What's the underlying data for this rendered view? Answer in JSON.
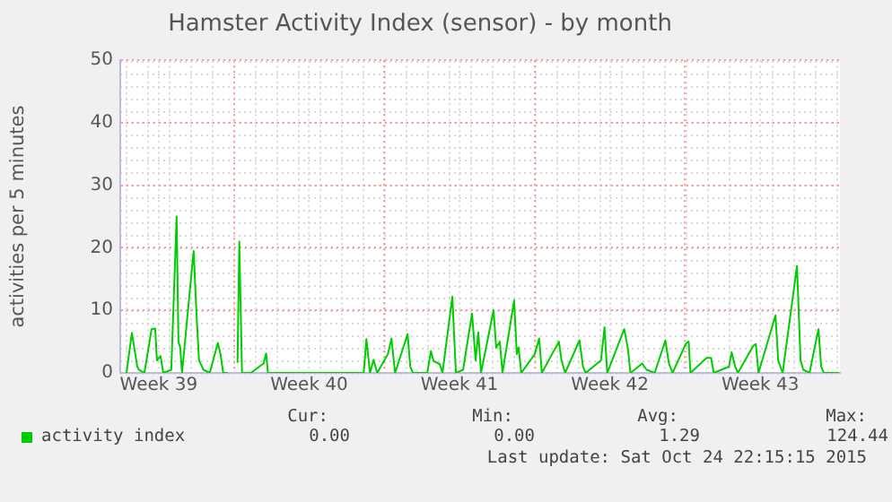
{
  "chart_data": {
    "type": "line",
    "title": "Hamster Activity Index (sensor) - by month",
    "ylabel": "activities per 5 minutes",
    "xlim": [
      "2015-09-22T17:00",
      "2015-10-26T05:00"
    ],
    "xticks": [
      {
        "value": "2015-09-24T12:00",
        "label": "Week 39"
      },
      {
        "value": "2015-09-28",
        "label": null
      },
      {
        "value": "2015-10-01T12:00",
        "label": "Week 40"
      },
      {
        "value": "2015-10-05",
        "label": null
      },
      {
        "value": "2015-10-08T12:00",
        "label": "Week 41"
      },
      {
        "value": "2015-10-12",
        "label": null
      },
      {
        "value": "2015-10-15T12:00",
        "label": "Week 42"
      },
      {
        "value": "2015-10-19",
        "label": null
      },
      {
        "value": "2015-10-22T12:00",
        "label": "Week 43"
      }
    ],
    "ylim": [
      0,
      50
    ],
    "yticks": [
      0,
      10,
      20,
      30,
      40,
      50
    ],
    "grid": true,
    "legend": "bottom",
    "marker": "none",
    "line_style": "solid",
    "series": [
      {
        "name": "activity index",
        "color": "#00cc00",
        "x": [
          "2015-09-23T00:00",
          "2015-09-23T06:00",
          "2015-09-23T12:00",
          "2015-09-23T14:00",
          "2015-09-23T20:00",
          "2015-09-24T04:00",
          "2015-09-24T08:00",
          "2015-09-24T10:00",
          "2015-09-24T14:00",
          "2015-09-24T17:00",
          "2015-09-25T02:00",
          "2015-09-25T08:00",
          "2015-09-25T10:00",
          "2015-09-25T12:00",
          "2015-09-25T14:00",
          "2015-09-26T03:00",
          "2015-09-26T06:00",
          "2015-09-26T09:00",
          "2015-09-26T14:00",
          "2015-09-26T21:00",
          "2015-09-27T06:00",
          "2015-09-27T09:00",
          "2015-09-27T12:00",
          "2015-09-27T17:00",
          "2015-09-27T22:00",
          "2015-09-28T04:00",
          "2015-09-28T06:00",
          "2015-09-28T09:00",
          "2015-09-28T19:00",
          "2015-09-29T09:00",
          "2015-09-29T12:00",
          "2015-09-29T14:00",
          "2015-10-04T01:00",
          "2015-10-04T04:00",
          "2015-10-04T08:00",
          "2015-10-04T12:00",
          "2015-10-04T16:00",
          "2015-10-05T04:00",
          "2015-10-05T08:00",
          "2015-10-05T12:00",
          "2015-10-06T02:00",
          "2015-10-06T05:00",
          "2015-10-06T08:00",
          "2015-10-07T00:00",
          "2015-10-07T04:00",
          "2015-10-07T07:00",
          "2015-10-07T14:00",
          "2015-10-07T17:00",
          "2015-10-08T04:00",
          "2015-10-08T08:00",
          "2015-10-08T16:00",
          "2015-10-09T02:00",
          "2015-10-09T06:00",
          "2015-10-09T09:00",
          "2015-10-09T12:00",
          "2015-10-10T02:00",
          "2015-10-10T05:00",
          "2015-10-10T09:00",
          "2015-10-10T12:00",
          "2015-10-11T01:00",
          "2015-10-11T04:00",
          "2015-10-11T06:00",
          "2015-10-11T09:00",
          "2015-10-12T00:00",
          "2015-10-12T05:00",
          "2015-10-12T08:00",
          "2015-10-13T03:00",
          "2015-10-13T06:00",
          "2015-10-13T10:00",
          "2015-10-14T02:00",
          "2015-10-14T06:00",
          "2015-10-14T09:00",
          "2015-10-15T02:00",
          "2015-10-15T06:00",
          "2015-10-15T09:00",
          "2015-10-16T04:00",
          "2015-10-16T08:00",
          "2015-10-16T11:00",
          "2015-10-17T00:00",
          "2015-10-17T05:00",
          "2015-10-17T14:00",
          "2015-10-18T02:00",
          "2015-10-18T06:00",
          "2015-10-18T10:00",
          "2015-10-19T01:00",
          "2015-10-19T04:00",
          "2015-10-19T06:00",
          "2015-10-20T00:00",
          "2015-10-20T05:00",
          "2015-10-20T08:00",
          "2015-10-21T01:00",
          "2015-10-21T04:00",
          "2015-10-21T08:00",
          "2015-10-21T11:00",
          "2015-10-22T04:00",
          "2015-10-22T07:00",
          "2015-10-22T10:00",
          "2015-10-23T05:00",
          "2015-10-23T08:00",
          "2015-10-23T13:00",
          "2015-10-24T05:00",
          "2015-10-24T09:00",
          "2015-10-24T12:00",
          "2015-10-24T19:00",
          "2015-10-25T05:00",
          "2015-10-25T08:00",
          "2015-10-25T11:00",
          "2015-10-26T04:00"
        ],
        "values": [
          0,
          6.4,
          1,
          0.5,
          0,
          7,
          7.1,
          2,
          2.7,
          0,
          0.5,
          25,
          5,
          4.1,
          0,
          19.5,
          10,
          2,
          0.5,
          0,
          4.8,
          3,
          0,
          0,
          null,
          1.6,
          21,
          0,
          0,
          1.5,
          3.1,
          0,
          0,
          5.4,
          0,
          2.1,
          0,
          3,
          5.5,
          0,
          6.2,
          1,
          0,
          0,
          3.5,
          1.9,
          1.4,
          0,
          12.2,
          0,
          0.5,
          9.5,
          2,
          6.5,
          0,
          10,
          4,
          5,
          0,
          11.6,
          3,
          4.1,
          0,
          3,
          5.5,
          0,
          5,
          2,
          0,
          5.2,
          1,
          0,
          2,
          7.3,
          0,
          7,
          4,
          0,
          1.5,
          0.5,
          0,
          5.2,
          1.5,
          0,
          4.7,
          5,
          0,
          2.4,
          2.4,
          0,
          1,
          3.3,
          1,
          0,
          4.3,
          4.6,
          0,
          9.2,
          2,
          0,
          17.1,
          2,
          0.5,
          0,
          7,
          1,
          0,
          0
        ]
      }
    ],
    "annotations": [
      "Cur:",
      "Min:",
      "Avg:",
      "Max:",
      "0.00",
      "0.00",
      "1.29",
      "124.44",
      "Last update: Sat Oct 24 22:15:15 2015"
    ]
  }
}
